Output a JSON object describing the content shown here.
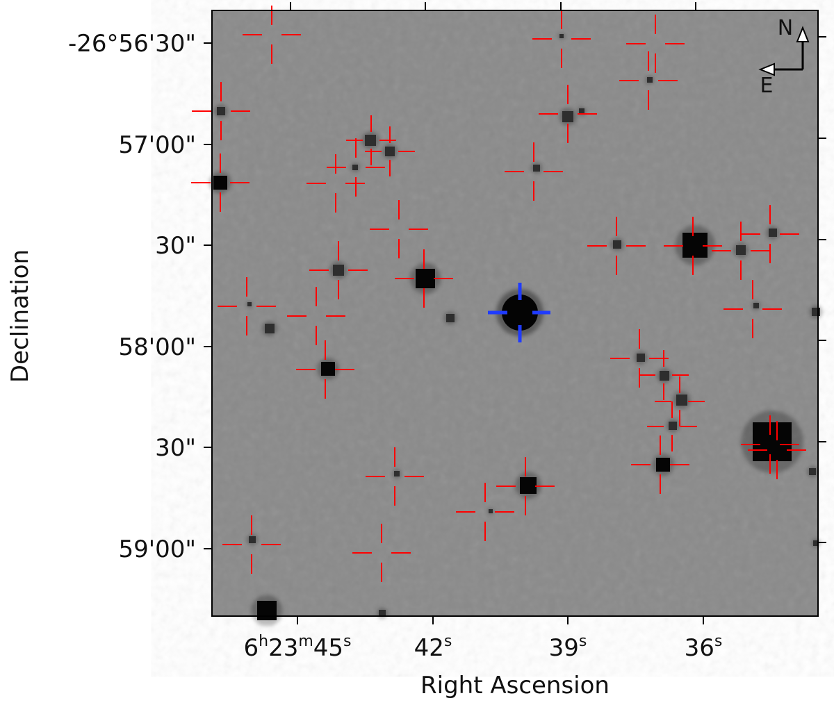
{
  "image": {
    "kind": "astronomical finder chart (grayscale sky image with source markers)",
    "colors": {
      "background": "#8a8a8a",
      "marker_catalog": "#ff0000",
      "marker_target": "#1f3bff",
      "axes": "#000000"
    }
  },
  "axes": {
    "xlabel": "Right Ascension",
    "ylabel": "Declination",
    "x_ticks": [
      {
        "value_s": 45,
        "label_main": "6",
        "label_h": "h",
        "label_mid": "23",
        "label_m": "m",
        "label_sec": "45",
        "label_s": "s"
      },
      {
        "value_s": 42,
        "label_sec": "42",
        "label_s": "s"
      },
      {
        "value_s": 39,
        "label_sec": "39",
        "label_s": "s"
      },
      {
        "value_s": 36,
        "label_sec": "36",
        "label_s": "s"
      }
    ],
    "y_ticks": [
      {
        "value_arcsec": -1590,
        "label": "-26°56'30\""
      },
      {
        "value_arcsec": -1620,
        "label": "57'00\""
      },
      {
        "value_arcsec": -1650,
        "label": "30\""
      },
      {
        "value_arcsec": -1680,
        "label": "58'00\""
      },
      {
        "value_arcsec": -1710,
        "label": "30\""
      },
      {
        "value_arcsec": -1740,
        "label": "59'00\""
      }
    ]
  },
  "compass": {
    "north_label": "N",
    "east_label": "E",
    "icon": "compass-arrows-icon"
  },
  "sources": {
    "target": {
      "ra_s": 40.08,
      "dec_arcsec": -1669.8,
      "marker": "blue-crosshair"
    },
    "catalog_icon": "red-crosshair-icon"
  }
}
